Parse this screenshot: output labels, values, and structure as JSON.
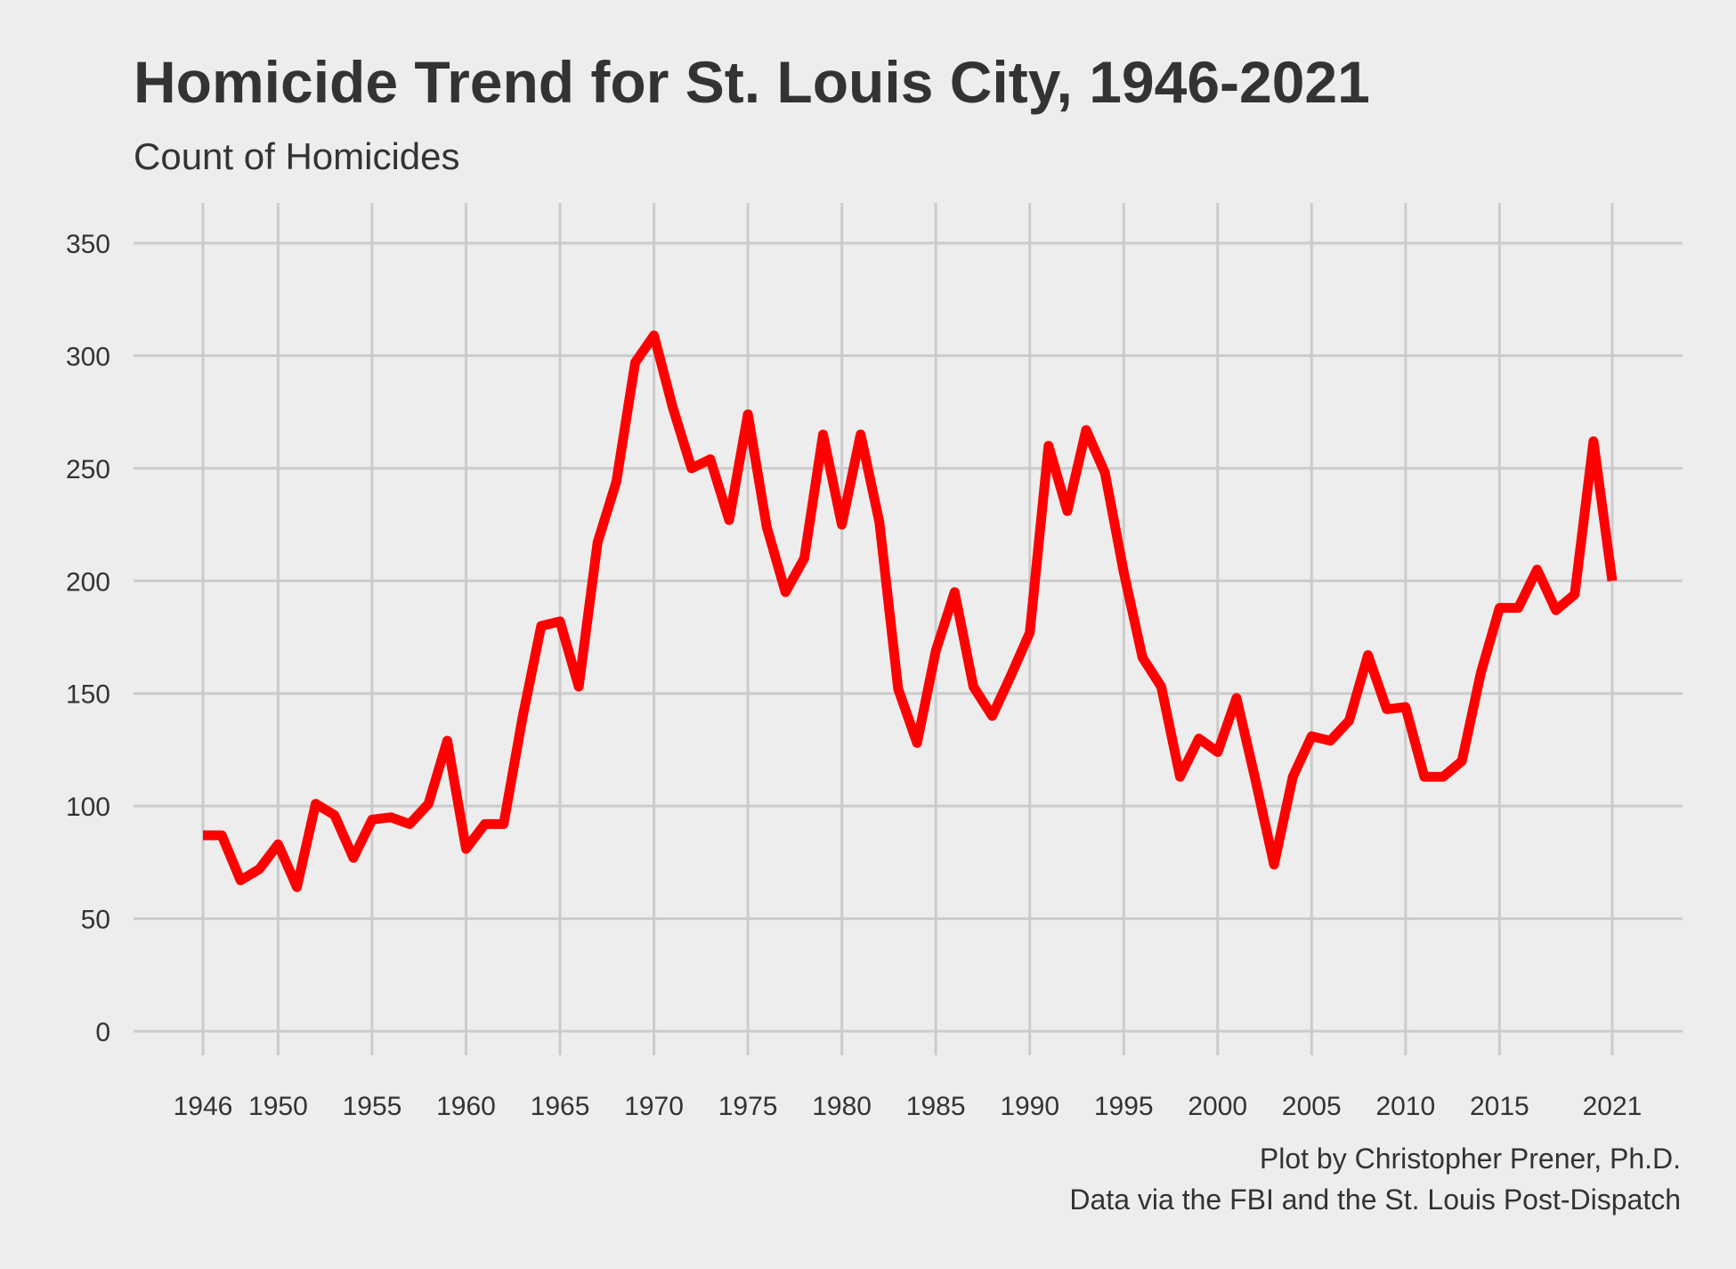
{
  "chart_data": {
    "type": "line",
    "title": "Homicide Trend for St. Louis City, 1946-2021",
    "subtitle": "Count of Homicides",
    "caption": [
      "Plot by Christopher Prener, Ph.D.",
      "Data via the FBI and the St. Louis Post-Dispatch"
    ],
    "xlabel": "",
    "ylabel": "",
    "xlim": [
      1946,
      2021
    ],
    "ylim": [
      0,
      350
    ],
    "x_ticks": [
      1946,
      1950,
      1955,
      1960,
      1965,
      1970,
      1975,
      1980,
      1985,
      1990,
      1995,
      2000,
      2005,
      2010,
      2015,
      2021
    ],
    "y_ticks": [
      0,
      50,
      100,
      150,
      200,
      250,
      300,
      350
    ],
    "grid": true,
    "legend": "none",
    "series": [
      {
        "color": "#ff0000",
        "x": [
          1946,
          1947,
          1948,
          1949,
          1950,
          1951,
          1952,
          1953,
          1954,
          1955,
          1956,
          1957,
          1958,
          1959,
          1960,
          1961,
          1962,
          1963,
          1964,
          1965,
          1966,
          1967,
          1968,
          1969,
          1970,
          1971,
          1972,
          1973,
          1974,
          1975,
          1976,
          1977,
          1978,
          1979,
          1980,
          1981,
          1982,
          1983,
          1984,
          1985,
          1986,
          1987,
          1988,
          1989,
          1990,
          1991,
          1992,
          1993,
          1994,
          1995,
          1996,
          1997,
          1998,
          1999,
          2000,
          2001,
          2002,
          2003,
          2004,
          2005,
          2006,
          2007,
          2008,
          2009,
          2010,
          2011,
          2012,
          2013,
          2014,
          2015,
          2016,
          2017,
          2018,
          2019,
          2020,
          2021
        ],
        "y": [
          87,
          87,
          67,
          72,
          83,
          64,
          101,
          96,
          77,
          94,
          95,
          92,
          101,
          129,
          81,
          92,
          92,
          139,
          180,
          182,
          153,
          217,
          244,
          297,
          309,
          277,
          250,
          254,
          227,
          274,
          224,
          195,
          210,
          265,
          225,
          265,
          226,
          152,
          128,
          169,
          195,
          153,
          140,
          158,
          177,
          260,
          231,
          267,
          248,
          204,
          166,
          153,
          113,
          130,
          124,
          148,
          112,
          74,
          113,
          131,
          129,
          138,
          167,
          143,
          144,
          113,
          113,
          120,
          159,
          188,
          188,
          205,
          187,
          194,
          262,
          200
        ]
      }
    ]
  }
}
